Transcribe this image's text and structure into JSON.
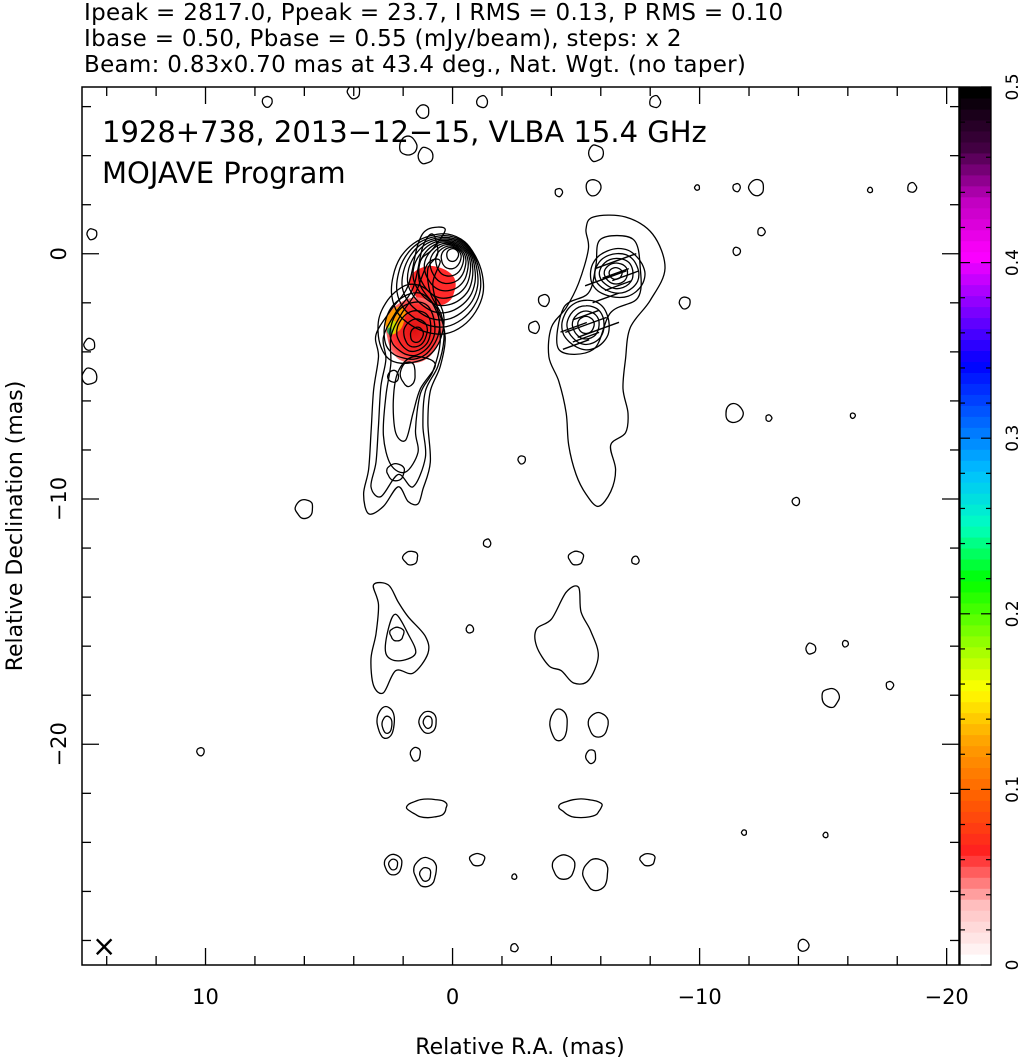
{
  "header": {
    "line1": "Ipeak = 2817.0, Ppeak = 23.7, I RMS = 0.13, P RMS = 0.10",
    "line2": "Ibase = 0.50, Pbase = 0.55 (mJy/beam), steps: x 2",
    "line3": "Beam: 0.83x0.70 mas at 43.4 deg., Nat. Wgt. (no taper)"
  },
  "chart_data": {
    "type": "heatmap",
    "source_label": "1928+738, 2013−12−15, VLBA 15.4 GHz",
    "program_label": "MOJAVE Program",
    "xlabel": "Relative R.A. (mas)",
    "ylabel": "Relative Declination (mas)",
    "xlim": [
      15,
      -20.5
    ],
    "ylim": [
      -29,
      6.8
    ],
    "x_ticks": [
      10,
      0,
      -10,
      -20
    ],
    "x_tick_labels": [
      "10",
      "0",
      "−10",
      "−20"
    ],
    "y_ticks": [
      0,
      -10,
      -20
    ],
    "y_tick_labels": [
      "0",
      "−10",
      "−20"
    ],
    "grid": false,
    "beam_marker": "×",
    "colorbar": {
      "min": 0,
      "max": 0.5,
      "ticks": [
        0,
        0.1,
        0.2,
        0.3,
        0.4,
        0.5
      ],
      "tick_labels": [
        "0",
        "0.1",
        "0.2",
        "0.3",
        "0.4",
        "0.5"
      ],
      "colormap": [
        "#ffffff",
        "#ffc0c0",
        "#ff2020",
        "#ff6000",
        "#ffa000",
        "#ffff00",
        "#80ff00",
        "#00ff00",
        "#00ffc0",
        "#00c0ff",
        "#0060ff",
        "#0000ff",
        "#8000ff",
        "#ff00ff",
        "#c000c0",
        "#400040",
        "#000000"
      ]
    },
    "left_panel": {
      "name": "total intensity contours with fractional polarization color",
      "core_position": [
        0,
        0
      ],
      "knot_position": [
        1.5,
        -3.3
      ],
      "contour_levels": 12,
      "color_blob": [
        {
          "x": 0.9,
          "y": -1.4,
          "value": 0.07
        },
        {
          "x": 1.5,
          "y": -3.3,
          "value": 0.09
        },
        {
          "x": 2.3,
          "y": -2.6,
          "value": 0.2
        }
      ]
    },
    "right_panel": {
      "name": "polarized intensity contours with EVPA ticks",
      "offset_ra": -5.3,
      "peaks": [
        [
          -6.6,
          -0.8
        ],
        [
          -5.4,
          -2.9
        ]
      ]
    }
  }
}
